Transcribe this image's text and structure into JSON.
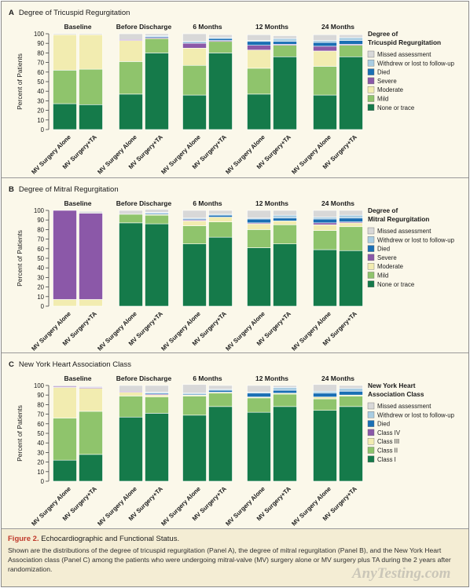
{
  "chart_data": [
    {
      "type": "bar",
      "panel_letter": "A",
      "title": "Degree of Tricuspid Regurgitation",
      "ylabel": "Percent of Patients",
      "ylim": [
        0,
        100
      ],
      "yticks": [
        0,
        10,
        20,
        30,
        40,
        50,
        60,
        70,
        80,
        90,
        100
      ],
      "legend_title": "Degree of\nTricuspid Regurgitation",
      "legend_position": "right",
      "timepoints": [
        "Baseline",
        "Before Discharge",
        "6 Months",
        "12 Months",
        "24 Months"
      ],
      "groups": [
        "MV Surgery Alone",
        "MV Surgery+TA"
      ],
      "series": [
        {
          "name": "None or trace",
          "color": "#157a4a",
          "values": [
            [
              27,
              26
            ],
            [
              37,
              80
            ],
            [
              36,
              80
            ],
            [
              37,
              76
            ],
            [
              36,
              76
            ]
          ]
        },
        {
          "name": "Mild",
          "color": "#8fc46c",
          "values": [
            [
              35,
              37
            ],
            [
              34,
              15
            ],
            [
              31,
              12
            ],
            [
              27,
              12
            ],
            [
              30,
              12
            ]
          ]
        },
        {
          "name": "Moderate",
          "color": "#f2ecb0",
          "values": [
            [
              37,
              36
            ],
            [
              22,
              0
            ],
            [
              18,
              0
            ],
            [
              19,
              0
            ],
            [
              16,
              0
            ]
          ]
        },
        {
          "name": "Severe",
          "color": "#8b58a8",
          "values": [
            [
              0,
              0
            ],
            [
              1,
              1
            ],
            [
              5,
              1
            ],
            [
              5,
              1
            ],
            [
              5,
              1
            ]
          ]
        },
        {
          "name": "Died",
          "color": "#1a6fb4",
          "values": [
            [
              0,
              0
            ],
            [
              0,
              1
            ],
            [
              1,
              2
            ],
            [
              4,
              3
            ],
            [
              4,
              4
            ]
          ]
        },
        {
          "name": "Withdrew or lost to follow-up",
          "color": "#a9cde2",
          "values": [
            [
              0,
              0
            ],
            [
              0,
              1
            ],
            [
              1,
              1
            ],
            [
              1,
              3
            ],
            [
              2,
              3
            ]
          ]
        },
        {
          "name": "Missed assessment",
          "color": "#d8d8d8",
          "values": [
            [
              1,
              1
            ],
            [
              6,
              2
            ],
            [
              8,
              3
            ],
            [
              6,
              3
            ],
            [
              6,
              3
            ]
          ]
        }
      ]
    },
    {
      "type": "bar",
      "panel_letter": "B",
      "title": "Degree of Mitral Regurgitation",
      "ylabel": "Percent of Patients",
      "ylim": [
        0,
        100
      ],
      "yticks": [
        0,
        10,
        20,
        30,
        40,
        50,
        60,
        70,
        80,
        90,
        100
      ],
      "legend_title": "Degree of\nMitral Regurgitation",
      "legend_position": "right",
      "timepoints": [
        "Baseline",
        "Before Discharge",
        "6 Months",
        "12 Months",
        "24 Months"
      ],
      "groups": [
        "MV Surgery Alone",
        "MV Surgery+TA"
      ],
      "series": [
        {
          "name": "None or trace",
          "color": "#157a4a",
          "values": [
            [
              0,
              0
            ],
            [
              87,
              86
            ],
            [
              65,
              72
            ],
            [
              61,
              65
            ],
            [
              59,
              58
            ]
          ]
        },
        {
          "name": "Mild",
          "color": "#8fc46c",
          "values": [
            [
              0,
              0
            ],
            [
              9,
              9
            ],
            [
              19,
              16
            ],
            [
              19,
              20
            ],
            [
              20,
              25
            ]
          ]
        },
        {
          "name": "Moderate",
          "color": "#f2ecb0",
          "values": [
            [
              7,
              7
            ],
            [
              0,
              1
            ],
            [
              5,
              5
            ],
            [
              6,
              4
            ],
            [
              6,
              4
            ]
          ]
        },
        {
          "name": "Severe",
          "color": "#8b58a8",
          "values": [
            [
              93,
              90
            ],
            [
              0,
              0
            ],
            [
              1,
              0
            ],
            [
              1,
              0
            ],
            [
              2,
              1
            ]
          ]
        },
        {
          "name": "Died",
          "color": "#1a6fb4",
          "values": [
            [
              0,
              0
            ],
            [
              0,
              1
            ],
            [
              1,
              2
            ],
            [
              4,
              3
            ],
            [
              4,
              4
            ]
          ]
        },
        {
          "name": "Withdrew or lost to follow-up",
          "color": "#a9cde2",
          "values": [
            [
              0,
              0
            ],
            [
              0,
              1
            ],
            [
              1,
              1
            ],
            [
              1,
              3
            ],
            [
              2,
              3
            ]
          ]
        },
        {
          "name": "Missed assessment",
          "color": "#d8d8d8",
          "values": [
            [
              0,
              2
            ],
            [
              4,
              3
            ],
            [
              8,
              4
            ],
            [
              8,
              5
            ],
            [
              7,
              5
            ]
          ]
        }
      ]
    },
    {
      "type": "bar",
      "panel_letter": "C",
      "title": "New York Heart Association Class",
      "ylabel": "Percent of Patients",
      "ylim": [
        0,
        100
      ],
      "yticks": [
        0,
        10,
        20,
        30,
        40,
        50,
        60,
        70,
        80,
        90,
        100
      ],
      "legend_title": "New York Heart\nAssociation Class",
      "legend_position": "right",
      "timepoints": [
        "Baseline",
        "Before Discharge",
        "6 Months",
        "12 Months",
        "24 Months"
      ],
      "groups": [
        "MV Surgery Alone",
        "MV Surgery+TA"
      ],
      "series": [
        {
          "name": "Class I",
          "color": "#157a4a",
          "values": [
            [
              22,
              28
            ],
            [
              67,
              71
            ],
            [
              69,
              78
            ],
            [
              72,
              78
            ],
            [
              74,
              78
            ]
          ]
        },
        {
          "name": "Class II",
          "color": "#8fc46c",
          "values": [
            [
              44,
              45
            ],
            [
              22,
              17
            ],
            [
              20,
              14
            ],
            [
              15,
              13
            ],
            [
              12,
              11
            ]
          ]
        },
        {
          "name": "Class III",
          "color": "#f2ecb0",
          "values": [
            [
              32,
              24
            ],
            [
              4,
              2
            ],
            [
              1,
              1
            ],
            [
              1,
              1
            ],
            [
              2,
              1
            ]
          ]
        },
        {
          "name": "Class IV",
          "color": "#8b58a8",
          "values": [
            [
              1,
              1
            ],
            [
              1,
              1
            ],
            [
              0,
              0
            ],
            [
              0,
              0
            ],
            [
              0,
              0
            ]
          ]
        },
        {
          "name": "Died",
          "color": "#1a6fb4",
          "values": [
            [
              0,
              0
            ],
            [
              0,
              1
            ],
            [
              1,
              2
            ],
            [
              4,
              3
            ],
            [
              4,
              4
            ]
          ]
        },
        {
          "name": "Withdrew or lost to follow-up",
          "color": "#a9cde2",
          "values": [
            [
              0,
              0
            ],
            [
              0,
              1
            ],
            [
              1,
              1
            ],
            [
              1,
              3
            ],
            [
              2,
              3
            ]
          ]
        },
        {
          "name": "Missed assessment",
          "color": "#d8d8d8",
          "values": [
            [
              1,
              1
            ],
            [
              6,
              7
            ],
            [
              9,
              4
            ],
            [
              7,
              2
            ],
            [
              7,
              3
            ]
          ]
        }
      ]
    }
  ],
  "caption": {
    "figure_label": "Figure 2.",
    "title": "Echocardiographic and Functional Status.",
    "text": "Shown are the distributions of the degree of tricuspid regurgitation (Panel A), the degree of mitral regurgitation (Panel B), and the New York Heart Association class (Panel C) among the patients who were undergoing mitral-valve (MV) surgery alone or MV surgery plus TA during the 2 years after randomization."
  },
  "watermark": "AnyTesting.com"
}
